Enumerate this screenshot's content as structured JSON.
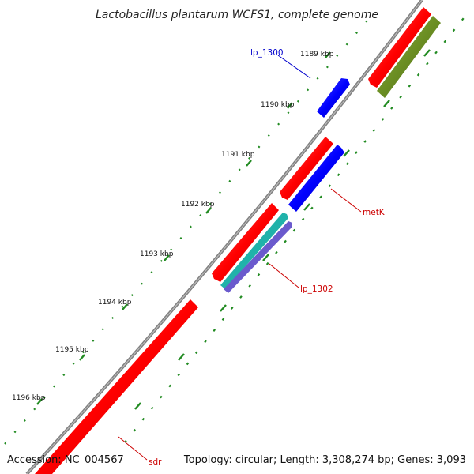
{
  "title": "Lactobacillus plantarum WCFS1, complete genome",
  "footer": {
    "accession": "Accession: NC_004567",
    "topology": "Topology: circular; Length: 3,308,274 bp; Genes: 3,093"
  },
  "colors": {
    "backbone": "#808080",
    "cds_red": "#ff0000",
    "cds_blue": "#0000ff",
    "cds_olive": "#6b8e23",
    "cds_teal": "#20b2aa",
    "cds_purple": "#6a5acd",
    "tick_green": "#228b22",
    "label_blue": "#0000cc",
    "label_red": "#cc0000"
  },
  "ticks": [
    "1189 kbp",
    "1190 kbp",
    "1191 kbp",
    "1192 kbp",
    "1193 kbp",
    "1194 kbp",
    "1195 kbp",
    "1196 kbp"
  ],
  "gene_labels": {
    "lp_1300": "lp_1300",
    "metK": "metK",
    "lp_1302": "lp_1302",
    "sdr": "sdr"
  }
}
